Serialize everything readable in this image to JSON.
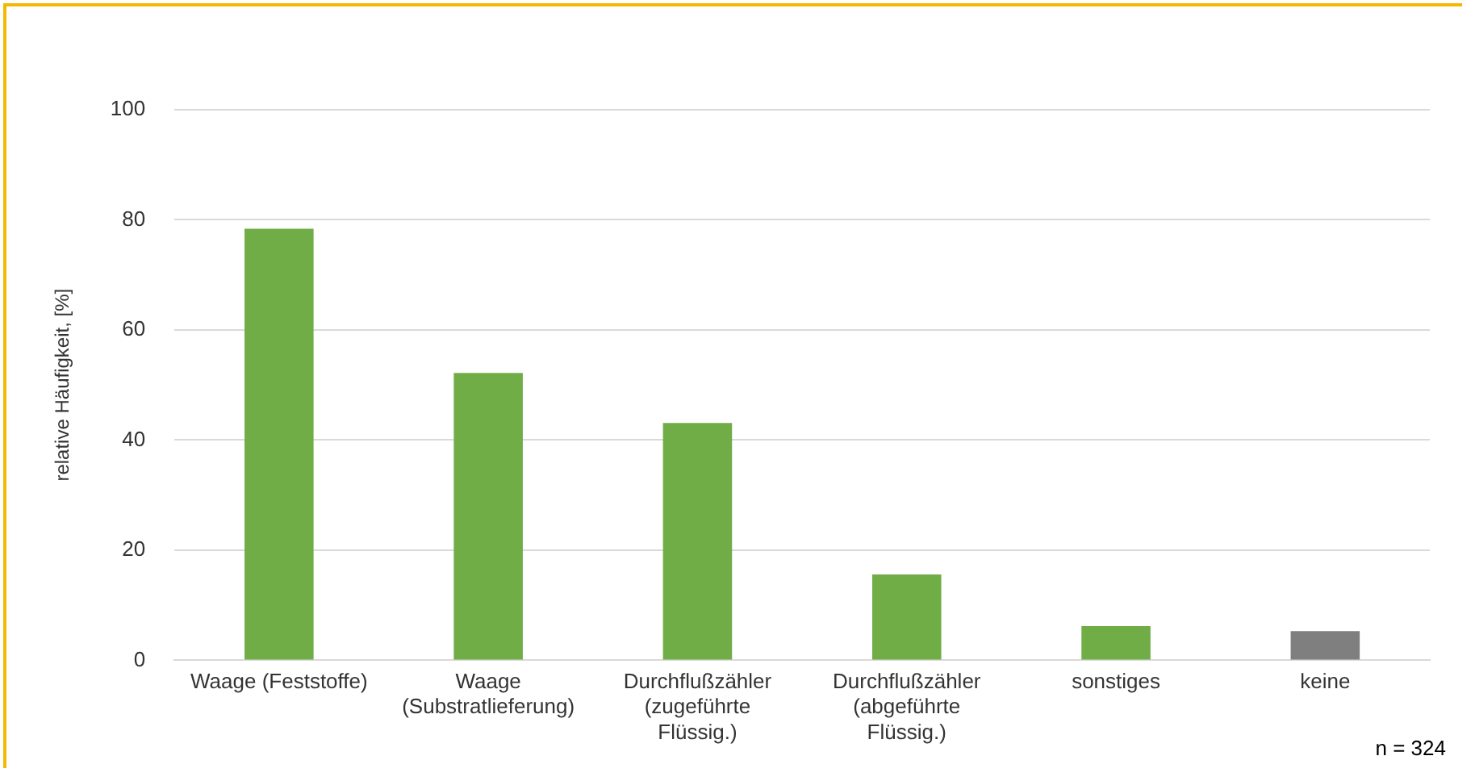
{
  "chart_data": {
    "type": "bar",
    "ylabel": "relative Häufigkeit, [%]",
    "categories": [
      "Waage (Feststoffe)",
      "Waage (Substratlieferung)",
      "Durchflußzähler (zugeführte Flüssig.)",
      "Durchflußzähler (abgeführte Flüssig.)",
      "sonstiges",
      "keine"
    ],
    "values": [
      78.4,
      52.2,
      43.1,
      15.6,
      6.2,
      5.3
    ],
    "colors": [
      "#70ad47",
      "#70ad47",
      "#70ad47",
      "#70ad47",
      "#70ad47",
      "#7f7f7f"
    ],
    "ylim": [
      0,
      100
    ],
    "yticks": [
      0,
      20,
      40,
      60,
      80,
      100
    ],
    "grid": "y",
    "annotations": [
      "n = 324"
    ]
  }
}
